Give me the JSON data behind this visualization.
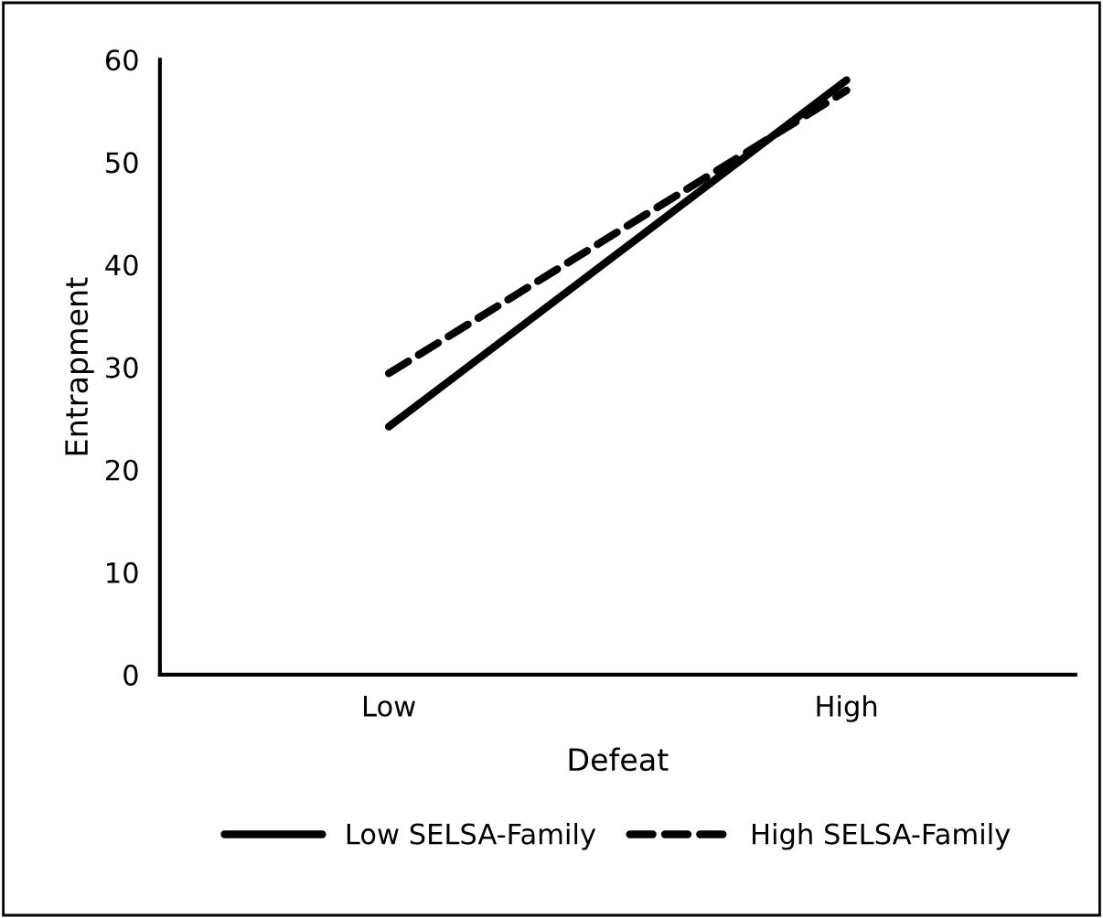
{
  "chart_data": {
    "type": "line",
    "xlabel": "Defeat",
    "ylabel": "Entrapment",
    "categories": [
      "Low",
      "High"
    ],
    "series": [
      {
        "name": "Low SELSA-Family",
        "color": "#000000",
        "values": [
          24.2,
          58
        ],
        "line_style": "solid"
      },
      {
        "name": "High SELSA-Family",
        "color": "#000000",
        "values": [
          29.4,
          57
        ],
        "line_style": "dashed"
      }
    ],
    "ylim": [
      0,
      60
    ],
    "yticks": [
      0,
      10,
      20,
      30,
      40,
      50,
      60
    ],
    "grid": false,
    "legend": "bottom",
    "marker": "none"
  }
}
